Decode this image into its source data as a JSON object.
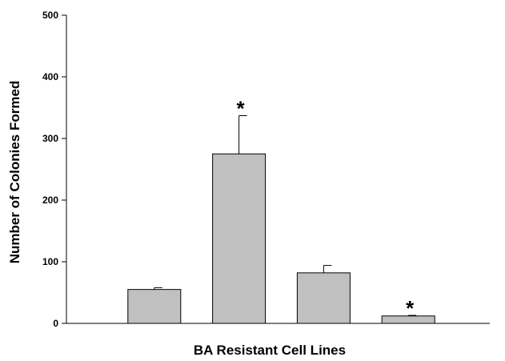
{
  "chart_data": {
    "type": "bar",
    "title": "",
    "xlabel": "BA Resistant Cell Lines",
    "ylabel": "Number of Colonies Formed",
    "ylim": [
      0,
      500
    ],
    "yticks": [
      0,
      100,
      200,
      300,
      400,
      500
    ],
    "grid": false,
    "categories": [
      "",
      "",
      "",
      ""
    ],
    "values": [
      55,
      275,
      82,
      12
    ],
    "error_bars_upper": [
      3,
      62,
      12,
      1
    ],
    "significance": [
      "",
      "*",
      "",
      "*"
    ],
    "bar_color": "#c0c0c0"
  }
}
